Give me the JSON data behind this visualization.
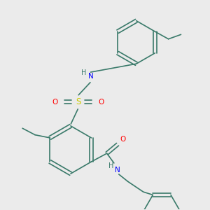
{
  "background_color": "#ebebeb",
  "bond_color": "#3a7a6a",
  "atom_colors": {
    "N": "#0000ff",
    "O": "#ff0000",
    "S": "#cccc00",
    "C": "#3a7a6a",
    "H": "#3a7a6a"
  },
  "figsize": [
    3.0,
    3.0
  ],
  "dpi": 100
}
